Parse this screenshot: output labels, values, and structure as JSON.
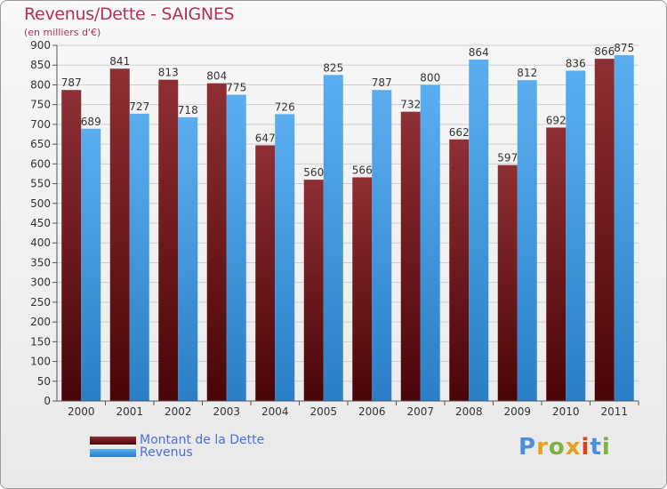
{
  "header": {
    "title": "Revenus/Dette - SAIGNES",
    "subtitle": "(en milliers d'€)"
  },
  "legend": {
    "items": [
      {
        "label": "Montant de la Dette",
        "color": "#6b1a1f"
      },
      {
        "label": "Revenus",
        "color": "#3a9ae0"
      }
    ]
  },
  "logo": {
    "text": "Proxiti",
    "colors": [
      "#4a90d9",
      "#e8a020",
      "#7cb342",
      "#e8a020",
      "#d84315",
      "#4a90d9",
      "#7cb342"
    ]
  },
  "chart_data": {
    "type": "bar",
    "title": "Revenus/Dette - SAIGNES",
    "subtitle": "(en milliers d'€)",
    "categories": [
      "2000",
      "2001",
      "2002",
      "2003",
      "2004",
      "2005",
      "2006",
      "2007",
      "2008",
      "2009",
      "2010",
      "2011"
    ],
    "series": [
      {
        "name": "Montant de la Dette",
        "color": "#7a2226",
        "values": [
          787,
          841,
          813,
          804,
          647,
          560,
          566,
          732,
          662,
          597,
          692,
          866
        ]
      },
      {
        "name": "Revenus",
        "color": "#3d9be3",
        "values": [
          689,
          727,
          718,
          775,
          726,
          825,
          787,
          800,
          864,
          812,
          836,
          875
        ]
      }
    ],
    "ylim": [
      0,
      900
    ],
    "yticks": [
      0,
      50,
      100,
      150,
      200,
      250,
      300,
      350,
      400,
      450,
      500,
      550,
      600,
      650,
      700,
      750,
      800,
      850,
      900
    ],
    "grid": true,
    "legend_position": "bottom-left"
  }
}
